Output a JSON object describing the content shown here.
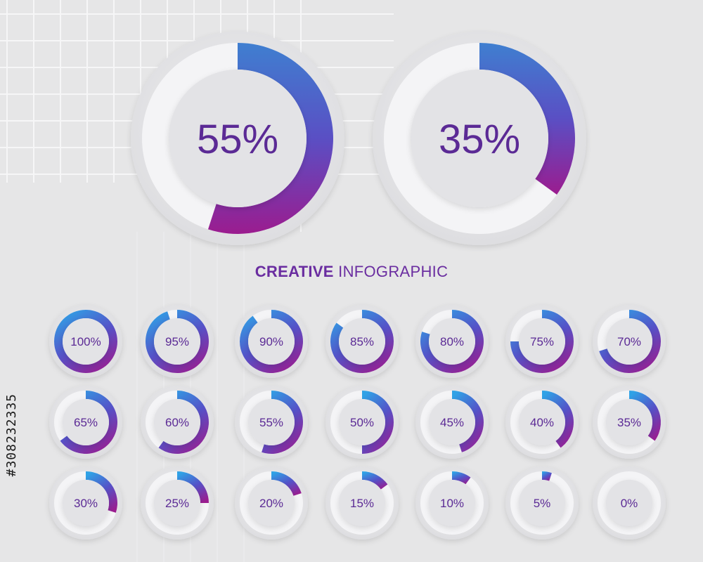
{
  "title": {
    "bold": "CREATIVE",
    "light": "INFOGRAPHIC"
  },
  "side_text": "#308232335",
  "colors": {
    "background": "#e6e6e7",
    "gradient_blue": "#2fa2e6",
    "gradient_indigo": "#5552c8",
    "gradient_purple": "#9b1c8f",
    "track": "#f3f3f5",
    "label": "#5b2a95"
  },
  "chart_data": {
    "type": "pie",
    "big": [
      {
        "label": "55%",
        "value": 55
      },
      {
        "label": "35%",
        "value": 35
      }
    ],
    "small": [
      {
        "label": "100%",
        "value": 100
      },
      {
        "label": "95%",
        "value": 95
      },
      {
        "label": "90%",
        "value": 90
      },
      {
        "label": "85%",
        "value": 85
      },
      {
        "label": "80%",
        "value": 80
      },
      {
        "label": "75%",
        "value": 75
      },
      {
        "label": "70%",
        "value": 70
      },
      {
        "label": "65%",
        "value": 65
      },
      {
        "label": "60%",
        "value": 60
      },
      {
        "label": "55%",
        "value": 55
      },
      {
        "label": "50%",
        "value": 50
      },
      {
        "label": "45%",
        "value": 45
      },
      {
        "label": "40%",
        "value": 40
      },
      {
        "label": "35%",
        "value": 35
      },
      {
        "label": "30%",
        "value": 30
      },
      {
        "label": "25%",
        "value": 25
      },
      {
        "label": "20%",
        "value": 20
      },
      {
        "label": "15%",
        "value": 15
      },
      {
        "label": "10%",
        "value": 10
      },
      {
        "label": "5%",
        "value": 5
      },
      {
        "label": "0%",
        "value": 0
      }
    ]
  }
}
